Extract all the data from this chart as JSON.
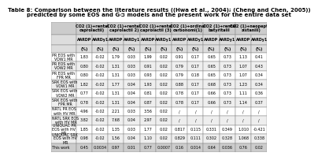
{
  "title_line1": "Table 8: Comparison between the literature results ((Hwa et al., 2004); (Cheng and Chen, 2005))",
  "title_line2": "predicted by some EOS and Gᴞ models and the present work for the entire data set",
  "col_groups": [
    "CO2 (1)+rental\ncaprolactil)",
    "CO2 (1)+rental\ncaprolactil 2)",
    "CO2 (1)+rental\ncaprolactil (3)",
    "CO2 (1)+ordinal\ncarbonomi(1)",
    "CO2 (1)+rental\nbatyritalil",
    "CO2 (1)+neopeptyl\nsixtanili)"
  ],
  "row_labels": [
    "PR EOS with\nVDW1 MR",
    "PR EOS with\nVDW2 MR",
    "PR EOS with\nFPR MR",
    "SRK EOS with\nVDW1 MR",
    "SRK EOS with\nVDW2 MR",
    "SRK EOS with\nFPR MR",
    "NRTL PR EOS\nwith HV MR",
    "NRTL SRK EOS\nwith HV MR",
    "UNIQUAC PR\nEOS with HV\nMR",
    "UNIQUAC SRK\nEOS with HV\nMR",
    "This work"
  ],
  "data_str_vals": [
    [
      "1.83",
      "-0.02",
      "1.79",
      "0.03",
      "1.99",
      "0.02",
      "0.91",
      "0.17",
      "0.65",
      "0.73",
      "1.13",
      "0.41"
    ],
    [
      "0.80",
      "-0.02",
      "1.31",
      "0.03",
      "0.91",
      "0.02",
      "0.79",
      "0.17",
      "0.65",
      "0.73",
      "1.07",
      "0.43"
    ],
    [
      "0.80",
      "-0.02",
      "1.31",
      "0.03",
      "0.93",
      "0.02",
      "0.79",
      "0.18",
      "0.65",
      "0.73",
      "1.07",
      "0.34"
    ],
    [
      "1.82",
      "-0.02",
      "1.77",
      "0.04",
      "1.93",
      "0.02",
      "0.88",
      "0.17",
      "0.68",
      "0.73",
      "1.23",
      "0.34"
    ],
    [
      "0.77",
      "-0.02",
      "1.31",
      "0.04",
      "0.81",
      "0.02",
      "0.78",
      "0.17",
      "0.66",
      "0.73",
      "1.11",
      "0.36"
    ],
    [
      "0.78",
      "-0.02",
      "1.31",
      "0.04",
      "0.87",
      "0.02",
      "0.78",
      "0.17",
      "0.66",
      "0.73",
      "1.14",
      "0.37"
    ],
    [
      "4.96",
      "-0.02",
      "2.21",
      "0.03",
      "3.56",
      "0.02",
      "/",
      "/",
      "/",
      "/",
      "/",
      "/"
    ],
    [
      "3.82",
      "-0.02",
      "7.68",
      "0.04",
      "2.97",
      "0.02",
      "/",
      "/",
      "/",
      "/",
      "/",
      "/"
    ],
    [
      "1.85",
      "-0.02",
      "1.35",
      "0.03",
      "1.77",
      "0.02",
      "0.817",
      "0.115",
      "0.331",
      "0.349",
      "1.010",
      "-0.421"
    ],
    [
      "0.98",
      "-0.02",
      "1.56",
      "0.04",
      "1.10",
      "0.02",
      "0.829",
      "0.111",
      "0.302",
      "0.328",
      "1.068",
      "0.338"
    ],
    [
      "0.45",
      "0.0034",
      "0.97",
      "0.01",
      "0.77",
      "0.0007",
      "0.16",
      "0.014",
      "0.64",
      "0.036",
      "0.76",
      "0.02"
    ]
  ],
  "header_bg": "#cccccc",
  "subheader_bg": "#dddddd",
  "row_bg_even": "#ffffff",
  "row_bg_odd": "#eeeeee",
  "last_row_bg": "#cccccc",
  "border_color": "#888888",
  "title_fontsize": 5.0,
  "header_fontsize": 3.6,
  "subheader_fontsize": 3.4,
  "data_fontsize": 3.5,
  "row_label_fontsize": 3.4
}
